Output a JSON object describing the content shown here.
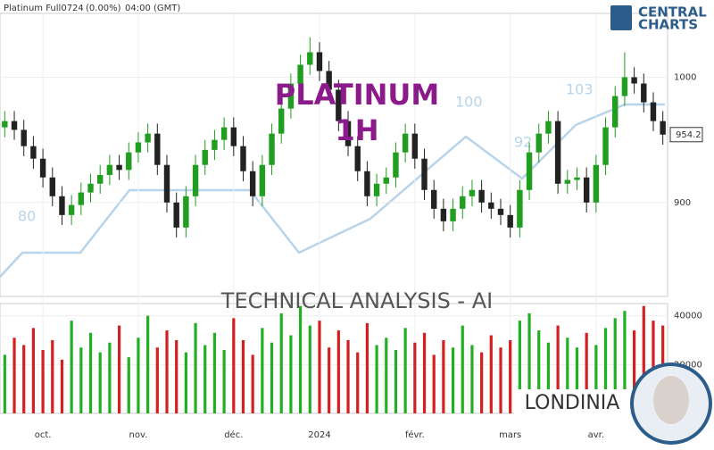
{
  "header": {
    "instrument": "Platinum Full0724",
    "change": "(0.00%)",
    "time": "04:00 (GMT)"
  },
  "logo": {
    "line1": "CENTRAL",
    "line2": "CHARTS"
  },
  "overlay": {
    "title": "PLATINUM",
    "timeframe": "1H",
    "banner": "TECHNICAL  ANALYSIS - AI",
    "brand": "LONDINIA",
    "watermark_labels": [
      80,
      100,
      92,
      103
    ]
  },
  "chart_data": [
    {
      "type": "candlestick",
      "up_color": "#1f9e1f",
      "down_color": "#222222",
      "xlim": [
        -0.5,
        69.5
      ],
      "xticks": [
        {
          "value": 4,
          "label": "oct."
        },
        {
          "value": 14,
          "label": "nov."
        },
        {
          "value": 24,
          "label": "déc."
        },
        {
          "value": 33,
          "label": "2024"
        },
        {
          "value": 43,
          "label": "févr."
        },
        {
          "value": 53,
          "label": "mars"
        },
        {
          "value": 62,
          "label": "avr."
        }
      ],
      "ylim": [
        825,
        1051
      ],
      "yticks": [
        900,
        1000
      ],
      "last_price": 954.2,
      "open": [
        960,
        965,
        958,
        945,
        935,
        920,
        905,
        890,
        898,
        908,
        915,
        922,
        930,
        926,
        940,
        948,
        955,
        930,
        900,
        880,
        905,
        930,
        942,
        950,
        960,
        945,
        925,
        905,
        930,
        955,
        975,
        995,
        1010,
        1020,
        1005,
        990,
        965,
        945,
        925,
        905,
        915,
        920,
        940,
        955,
        935,
        910,
        895,
        885,
        895,
        905,
        910,
        900,
        895,
        890,
        880,
        910,
        940,
        955,
        965,
        915,
        918,
        920,
        900,
        930,
        960,
        985,
        1000,
        995,
        980,
        965
      ],
      "high": [
        973,
        973,
        966,
        953,
        943,
        928,
        913,
        906,
        916,
        923,
        930,
        938,
        938,
        948,
        956,
        963,
        963,
        938,
        908,
        913,
        938,
        950,
        958,
        968,
        968,
        953,
        933,
        938,
        963,
        983,
        1003,
        1018,
        1032,
        1028,
        1013,
        998,
        973,
        953,
        933,
        923,
        928,
        948,
        963,
        963,
        943,
        918,
        903,
        903,
        913,
        918,
        918,
        908,
        903,
        898,
        918,
        948,
        963,
        973,
        973,
        926,
        928,
        928,
        938,
        968,
        993,
        1020,
        1008,
        1003,
        988,
        973
      ],
      "low": [
        952,
        950,
        937,
        927,
        912,
        897,
        882,
        882,
        890,
        900,
        907,
        914,
        918,
        918,
        932,
        940,
        922,
        892,
        872,
        872,
        897,
        922,
        934,
        942,
        937,
        917,
        897,
        897,
        922,
        947,
        967,
        987,
        1002,
        997,
        982,
        957,
        937,
        917,
        897,
        897,
        907,
        912,
        932,
        927,
        902,
        887,
        877,
        877,
        887,
        897,
        892,
        887,
        882,
        872,
        872,
        902,
        932,
        947,
        907,
        907,
        910,
        892,
        892,
        922,
        952,
        977,
        987,
        972,
        957,
        946.2
      ],
      "close": [
        965,
        958,
        945,
        935,
        920,
        905,
        890,
        898,
        908,
        915,
        922,
        930,
        926,
        940,
        948,
        955,
        930,
        900,
        880,
        905,
        930,
        942,
        950,
        960,
        945,
        925,
        905,
        930,
        955,
        975,
        995,
        1010,
        1020,
        1005,
        990,
        965,
        945,
        925,
        905,
        915,
        920,
        940,
        955,
        935,
        910,
        895,
        885,
        895,
        905,
        910,
        900,
        895,
        890,
        880,
        910,
        940,
        955,
        965,
        915,
        918,
        920,
        900,
        930,
        960,
        985,
        1000,
        995,
        980,
        965,
        954.2
      ]
    },
    {
      "type": "volume",
      "up_color": "#22b022",
      "down_color": "#d42020",
      "ylim": [
        0,
        45000
      ],
      "yticks": [
        20000,
        40000
      ],
      "values": [
        24000,
        31000,
        28000,
        35000,
        26000,
        30000,
        22000,
        38000,
        27000,
        33000,
        25000,
        29000,
        36000,
        23000,
        31000,
        40000,
        27000,
        34000,
        30000,
        25000,
        37000,
        28000,
        33000,
        26000,
        39000,
        30000,
        24000,
        35000,
        29000,
        41000,
        32000,
        44000,
        36000,
        38000,
        27000,
        34000,
        30000,
        25000,
        37000,
        28000,
        31000,
        26000,
        35000,
        29000,
        33000,
        24000,
        30000,
        27000,
        36000,
        28000,
        25000,
        32000,
        27000,
        30000,
        38000,
        41000,
        34000,
        29000,
        36000,
        31000,
        27000,
        33000,
        28000,
        35000,
        39000,
        42000,
        34000,
        44000,
        38000,
        36000
      ]
    }
  ]
}
